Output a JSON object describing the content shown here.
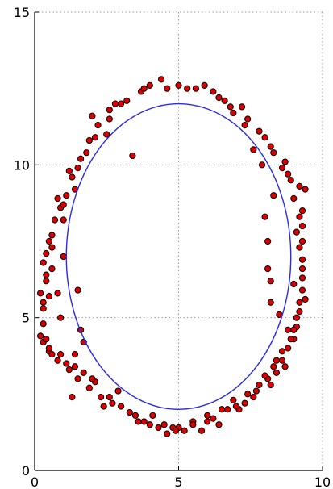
{
  "chart_data": {
    "type": "scatter",
    "title": "",
    "xlabel": "",
    "ylabel": "",
    "xlim": [
      0,
      10
    ],
    "ylim": [
      0,
      15
    ],
    "grid": true,
    "x_ticks": [
      0,
      5,
      10
    ],
    "y_ticks": [
      0,
      5,
      10,
      15
    ],
    "x_tick_labels": [
      "0",
      "5",
      "10"
    ],
    "y_tick_labels": [
      "0",
      "5",
      "10",
      "15"
    ],
    "series": [
      {
        "kind": "scatter",
        "marker": "circle",
        "color": "#dd0000",
        "points": [
          [
            4.4,
            12.8
          ],
          [
            5.6,
            12.5
          ],
          [
            6.2,
            12.4
          ],
          [
            3.2,
            12.1
          ],
          [
            6.6,
            12.1
          ],
          [
            2.6,
            11.8
          ],
          [
            7.4,
            11.5
          ],
          [
            2.2,
            11.3
          ],
          [
            7.8,
            11.1
          ],
          [
            1.9,
            10.8
          ],
          [
            8.2,
            10.6
          ],
          [
            1.6,
            10.2
          ],
          [
            8.6,
            9.9
          ],
          [
            1.3,
            9.6
          ],
          [
            8.9,
            9.5
          ],
          [
            9.2,
            9.3
          ],
          [
            1.1,
            9.0
          ],
          [
            0.9,
            8.6
          ],
          [
            9.3,
            8.5
          ],
          [
            0.7,
            8.2
          ],
          [
            9.3,
            8.0
          ],
          [
            0.5,
            7.5
          ],
          [
            9.2,
            7.3
          ],
          [
            0.4,
            7.1
          ],
          [
            9.3,
            6.9
          ],
          [
            0.6,
            6.6
          ],
          [
            9.3,
            6.3
          ],
          [
            0.4,
            6.2
          ],
          [
            9.3,
            5.9
          ],
          [
            0.5,
            5.7
          ],
          [
            9.4,
            5.6
          ],
          [
            0.3,
            5.3
          ],
          [
            9.2,
            5.2
          ],
          [
            0.3,
            4.8
          ],
          [
            9.1,
            4.7
          ],
          [
            0.2,
            4.4
          ],
          [
            9.0,
            4.3
          ],
          [
            0.5,
            3.9
          ],
          [
            8.8,
            4.0
          ],
          [
            0.8,
            3.6
          ],
          [
            8.6,
            3.6
          ],
          [
            1.2,
            3.3
          ],
          [
            8.4,
            3.2
          ],
          [
            1.5,
            3.0
          ],
          [
            8.1,
            3.0
          ],
          [
            1.9,
            2.7
          ],
          [
            7.8,
            2.8
          ],
          [
            2.3,
            2.4
          ],
          [
            7.4,
            2.5
          ],
          [
            2.7,
            2.2
          ],
          [
            6.9,
            2.3
          ],
          [
            3.3,
            1.9
          ],
          [
            6.5,
            2.0
          ],
          [
            3.8,
            1.6
          ],
          [
            6.0,
            1.8
          ],
          [
            4.3,
            1.4
          ],
          [
            5.5,
            1.6
          ],
          [
            4.8,
            1.4
          ],
          [
            5.2,
            1.3
          ],
          [
            3.4,
            10.3
          ],
          [
            1.5,
            5.9
          ],
          [
            1.6,
            4.6
          ],
          [
            0.9,
            5.0
          ],
          [
            8.5,
            5.1
          ],
          [
            8.2,
            6.2
          ],
          [
            8.1,
            7.5
          ],
          [
            8.0,
            8.3
          ],
          [
            8.3,
            9.0
          ],
          [
            7.9,
            10.0
          ],
          [
            7.6,
            10.5
          ],
          [
            1.8,
            10.4
          ],
          [
            2.5,
            11.0
          ],
          [
            3.7,
            12.4
          ],
          [
            5.0,
            12.6
          ],
          [
            5.9,
            12.6
          ],
          [
            6.9,
            11.7
          ],
          [
            1.4,
            9.2
          ],
          [
            1.0,
            8.2
          ],
          [
            1.0,
            7.0
          ],
          [
            1.4,
            3.8
          ],
          [
            2.1,
            2.9
          ],
          [
            2.9,
            2.6
          ],
          [
            4.1,
            1.8
          ],
          [
            4.6,
            1.2
          ],
          [
            5.8,
            1.3
          ],
          [
            6.4,
            1.5
          ],
          [
            7.1,
            2.0
          ],
          [
            7.7,
            2.6
          ],
          [
            8.3,
            3.4
          ],
          [
            8.8,
            4.6
          ],
          [
            9.0,
            6.1
          ],
          [
            9.1,
            7.8
          ],
          [
            9.4,
            9.2
          ],
          [
            0.3,
            6.8
          ],
          [
            0.2,
            5.8
          ],
          [
            0.3,
            4.2
          ],
          [
            0.6,
            3.8
          ],
          [
            3.0,
            12.0
          ],
          [
            4.0,
            12.6
          ],
          [
            6.4,
            12.2
          ],
          [
            7.2,
            11.9
          ],
          [
            8.0,
            10.9
          ],
          [
            8.7,
            10.1
          ],
          [
            9.0,
            8.9
          ],
          [
            2.0,
            11.6
          ],
          [
            2.8,
            12.0
          ],
          [
            1.2,
            9.8
          ],
          [
            0.8,
            8.9
          ],
          [
            0.6,
            7.7
          ],
          [
            0.8,
            5.8
          ],
          [
            0.5,
            4.0
          ],
          [
            1.1,
            3.5
          ],
          [
            1.7,
            3.2
          ],
          [
            2.4,
            2.1
          ],
          [
            3.6,
            1.6
          ],
          [
            5.0,
            1.4
          ],
          [
            6.2,
            1.7
          ],
          [
            7.3,
            2.2
          ],
          [
            8.0,
            3.1
          ],
          [
            8.6,
            3.9
          ],
          [
            9.1,
            5.0
          ],
          [
            9.3,
            7.5
          ],
          [
            3.5,
            1.8
          ],
          [
            4.5,
            1.5
          ],
          [
            5.5,
            1.5
          ],
          [
            6.7,
            2.0
          ],
          [
            7.6,
            2.4
          ],
          [
            8.4,
            3.6
          ],
          [
            8.9,
            4.3
          ],
          [
            9.2,
            5.5
          ],
          [
            9.3,
            6.6
          ],
          [
            9.2,
            8.3
          ],
          [
            8.8,
            9.7
          ],
          [
            8.3,
            10.4
          ],
          [
            7.3,
            11.3
          ],
          [
            6.8,
            11.9
          ],
          [
            5.3,
            12.5
          ],
          [
            4.6,
            12.5
          ],
          [
            3.8,
            12.5
          ],
          [
            2.6,
            11.5
          ],
          [
            2.1,
            10.9
          ],
          [
            1.5,
            9.9
          ],
          [
            1.0,
            8.7
          ],
          [
            0.6,
            7.3
          ],
          [
            0.4,
            6.4
          ],
          [
            0.3,
            5.5
          ],
          [
            0.4,
            4.3
          ],
          [
            0.9,
            3.8
          ],
          [
            1.4,
            3.4
          ],
          [
            2.0,
            3.0
          ],
          [
            2.6,
            2.4
          ],
          [
            3.0,
            2.1
          ],
          [
            4.0,
            1.5
          ],
          [
            4.9,
            1.3
          ],
          [
            6.0,
            1.6
          ],
          [
            7.0,
            2.1
          ],
          [
            8.2,
            2.8
          ],
          [
            8.7,
            3.4
          ],
          [
            9.0,
            4.6
          ],
          [
            8.1,
            6.6
          ],
          [
            8.2,
            5.5
          ],
          [
            1.7,
            4.2
          ],
          [
            1.3,
            2.4
          ]
        ]
      },
      {
        "kind": "ellipse_fit",
        "color": "#2a2ae6",
        "center": [
          5.0,
          7.0
        ],
        "radius_x": 3.9,
        "radius_y": 5.0
      }
    ]
  }
}
